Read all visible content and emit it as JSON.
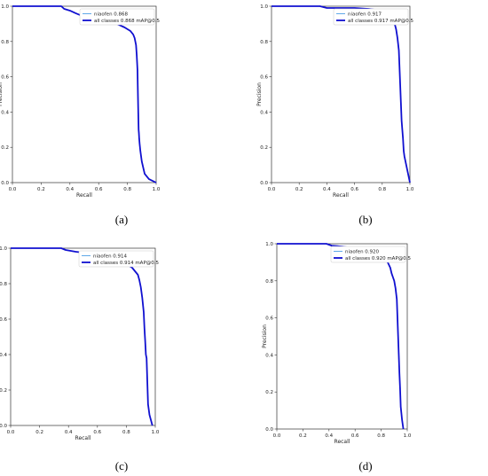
{
  "chart_data": [
    {
      "type": "line",
      "caption": "(a)",
      "xlabel": "Recall",
      "ylabel": "Precision",
      "xlim": [
        0,
        1
      ],
      "ylim": [
        0,
        1
      ],
      "xticks": [
        "0.0",
        "0.2",
        "0.4",
        "0.6",
        "0.8",
        "1.0"
      ],
      "yticks": [
        "0.0",
        "0.2",
        "0.4",
        "0.6",
        "0.8",
        "1.0"
      ],
      "legend_position": "top-right",
      "series": [
        {
          "name": "niaofen 0.868",
          "color": "#5fa8e8",
          "width": 1.0,
          "x": [
            0,
            0.34,
            0.36,
            0.4,
            0.44,
            0.47,
            0.5,
            0.55,
            0.6,
            0.65,
            0.7,
            0.74,
            0.78,
            0.8,
            0.82,
            0.84,
            0.85,
            0.86,
            0.865,
            0.87,
            0.872,
            0.875,
            0.878,
            0.88,
            0.882,
            0.885,
            0.89,
            0.9,
            0.92,
            0.95,
            1.0
          ],
          "y": [
            1.0,
            1.0,
            0.985,
            0.975,
            0.96,
            0.95,
            0.945,
            0.935,
            0.93,
            0.925,
            0.91,
            0.895,
            0.88,
            0.87,
            0.86,
            0.84,
            0.82,
            0.78,
            0.72,
            0.64,
            0.55,
            0.42,
            0.3,
            0.28,
            0.25,
            0.22,
            0.18,
            0.12,
            0.05,
            0.02,
            0.0
          ]
        },
        {
          "name": "all classes 0.868 mAP@0.5",
          "color": "#1010d0",
          "width": 1.8,
          "x": [
            0,
            0.34,
            0.36,
            0.4,
            0.44,
            0.47,
            0.5,
            0.55,
            0.6,
            0.65,
            0.7,
            0.74,
            0.78,
            0.8,
            0.82,
            0.84,
            0.85,
            0.86,
            0.865,
            0.87,
            0.872,
            0.875,
            0.878,
            0.88,
            0.882,
            0.885,
            0.89,
            0.9,
            0.92,
            0.95,
            1.0
          ],
          "y": [
            1.0,
            1.0,
            0.985,
            0.975,
            0.96,
            0.95,
            0.945,
            0.935,
            0.93,
            0.925,
            0.91,
            0.895,
            0.88,
            0.87,
            0.86,
            0.84,
            0.82,
            0.78,
            0.72,
            0.64,
            0.55,
            0.42,
            0.3,
            0.28,
            0.25,
            0.22,
            0.18,
            0.12,
            0.05,
            0.02,
            0.0
          ]
        }
      ]
    },
    {
      "type": "line",
      "caption": "(b)",
      "xlabel": "Recall",
      "ylabel": "Precision",
      "xlim": [
        0,
        1
      ],
      "ylim": [
        0,
        1
      ],
      "xticks": [
        "0.0",
        "0.2",
        "0.4",
        "0.6",
        "0.8",
        "1.0"
      ],
      "yticks": [
        "0.0",
        "0.2",
        "0.4",
        "0.6",
        "0.8",
        "1.0"
      ],
      "legend_position": "top-right",
      "series": [
        {
          "name": "niaofen 0.917",
          "color": "#5fa8e8",
          "width": 1.0,
          "x": [
            0,
            0.35,
            0.4,
            0.6,
            0.7,
            0.75,
            0.8,
            0.84,
            0.87,
            0.89,
            0.9,
            0.91,
            0.92,
            0.925,
            0.93,
            0.935,
            0.94,
            0.945,
            0.95,
            0.955,
            0.96,
            1.0
          ],
          "y": [
            1.0,
            1.0,
            0.99,
            0.99,
            0.985,
            0.98,
            0.97,
            0.95,
            0.93,
            0.9,
            0.87,
            0.82,
            0.75,
            0.65,
            0.55,
            0.45,
            0.35,
            0.3,
            0.25,
            0.18,
            0.15,
            0.0
          ]
        },
        {
          "name": "all classes 0.917 mAP@0.5",
          "color": "#1010d0",
          "width": 1.8,
          "x": [
            0,
            0.35,
            0.4,
            0.6,
            0.7,
            0.75,
            0.8,
            0.84,
            0.87,
            0.89,
            0.9,
            0.91,
            0.92,
            0.925,
            0.93,
            0.935,
            0.94,
            0.945,
            0.95,
            0.955,
            0.96,
            1.0
          ],
          "y": [
            1.0,
            1.0,
            0.99,
            0.99,
            0.985,
            0.98,
            0.97,
            0.95,
            0.93,
            0.9,
            0.87,
            0.82,
            0.75,
            0.65,
            0.55,
            0.45,
            0.35,
            0.3,
            0.25,
            0.18,
            0.15,
            0.0
          ]
        }
      ]
    },
    {
      "type": "line",
      "caption": "(c)",
      "xlabel": "Recall",
      "ylabel": "Precision",
      "xlim": [
        0,
        1
      ],
      "ylim": [
        0,
        1
      ],
      "xticks": [
        "0.0",
        "0.2",
        "0.4",
        "0.6",
        "0.8",
        "1.0"
      ],
      "yticks": [
        "0.0",
        "0.2",
        "0.4",
        "0.6",
        "0.8",
        "1.0"
      ],
      "legend_position": "top-right",
      "series": [
        {
          "name": "niaofen 0.914",
          "color": "#5fa8e8",
          "width": 1.0,
          "x": [
            0,
            0.35,
            0.38,
            0.45,
            0.5,
            0.55,
            0.6,
            0.65,
            0.7,
            0.75,
            0.8,
            0.84,
            0.86,
            0.88,
            0.89,
            0.9,
            0.91,
            0.92,
            0.925,
            0.93,
            0.935,
            0.94,
            0.945,
            0.95,
            0.96,
            0.97,
            0.98
          ],
          "y": [
            1.0,
            1.0,
            0.99,
            0.98,
            0.975,
            0.97,
            0.96,
            0.95,
            0.94,
            0.93,
            0.91,
            0.89,
            0.87,
            0.85,
            0.82,
            0.78,
            0.72,
            0.64,
            0.55,
            0.48,
            0.4,
            0.38,
            0.25,
            0.12,
            0.06,
            0.03,
            0.0
          ]
        },
        {
          "name": "all classes 0.914 mAP@0.5",
          "color": "#1010d0",
          "width": 1.8,
          "x": [
            0,
            0.35,
            0.38,
            0.45,
            0.5,
            0.55,
            0.6,
            0.65,
            0.7,
            0.75,
            0.8,
            0.84,
            0.86,
            0.88,
            0.89,
            0.9,
            0.91,
            0.92,
            0.925,
            0.93,
            0.935,
            0.94,
            0.945,
            0.95,
            0.96,
            0.97,
            0.98
          ],
          "y": [
            1.0,
            1.0,
            0.99,
            0.98,
            0.975,
            0.97,
            0.96,
            0.95,
            0.94,
            0.93,
            0.91,
            0.89,
            0.87,
            0.85,
            0.82,
            0.78,
            0.72,
            0.64,
            0.55,
            0.48,
            0.4,
            0.38,
            0.25,
            0.12,
            0.06,
            0.03,
            0.0
          ]
        }
      ]
    },
    {
      "type": "line",
      "caption": "(d)",
      "xlabel": "Recall",
      "ylabel": "Precision",
      "xlim": [
        0,
        1
      ],
      "ylim": [
        0,
        1
      ],
      "xticks": [
        "0.0",
        "0.2",
        "0.4",
        "0.6",
        "0.8",
        "1.0"
      ],
      "yticks": [
        "0.0",
        "0.2",
        "0.4",
        "0.6",
        "0.8",
        "1.0"
      ],
      "legend_position": "top-right",
      "series": [
        {
          "name": "niaofen 0.920",
          "color": "#5fa8e8",
          "width": 1.0,
          "x": [
            0,
            0.38,
            0.42,
            0.5,
            0.55,
            0.6,
            0.65,
            0.7,
            0.75,
            0.8,
            0.83,
            0.85,
            0.87,
            0.88,
            0.89,
            0.9,
            0.91,
            0.92,
            0.925,
            0.93,
            0.935,
            0.94,
            0.945,
            0.95,
            0.96,
            0.97
          ],
          "y": [
            1.0,
            1.0,
            0.99,
            0.985,
            0.98,
            0.975,
            0.97,
            0.96,
            0.95,
            0.94,
            0.92,
            0.9,
            0.87,
            0.84,
            0.82,
            0.8,
            0.76,
            0.7,
            0.6,
            0.5,
            0.4,
            0.3,
            0.22,
            0.12,
            0.05,
            0.0
          ]
        },
        {
          "name": "all classes 0.920 mAP@0.5",
          "color": "#1010d0",
          "width": 1.8,
          "x": [
            0,
            0.38,
            0.42,
            0.5,
            0.55,
            0.6,
            0.65,
            0.7,
            0.75,
            0.8,
            0.83,
            0.85,
            0.87,
            0.88,
            0.89,
            0.9,
            0.91,
            0.92,
            0.925,
            0.93,
            0.935,
            0.94,
            0.945,
            0.95,
            0.96,
            0.97
          ],
          "y": [
            1.0,
            1.0,
            0.99,
            0.985,
            0.98,
            0.975,
            0.97,
            0.96,
            0.95,
            0.94,
            0.92,
            0.9,
            0.87,
            0.84,
            0.82,
            0.8,
            0.76,
            0.7,
            0.6,
            0.5,
            0.4,
            0.3,
            0.22,
            0.12,
            0.05,
            0.0
          ]
        }
      ]
    }
  ]
}
